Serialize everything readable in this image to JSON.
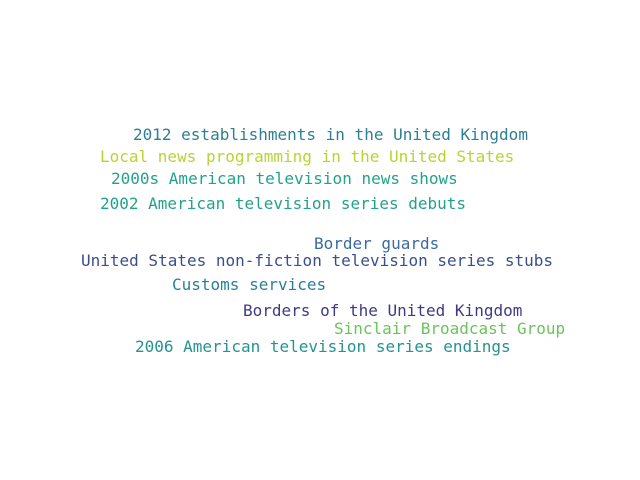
{
  "words": [
    {
      "text": "2012 establishments in the United Kingdom",
      "color": "#2d7f93"
    },
    {
      "text": "Local news programming in the United States",
      "color": "#b8d434"
    },
    {
      "text": "2000s American television news shows",
      "color": "#23a28a"
    },
    {
      "text": "2002 American television series debuts",
      "color": "#23a28a"
    },
    {
      "text": "Border guards",
      "color": "#3a6aa0"
    },
    {
      "text": "United States non-fiction television series stubs",
      "color": "#3b4e8c"
    },
    {
      "text": "Customs services",
      "color": "#2a7f9a"
    },
    {
      "text": "Borders of the United Kingdom",
      "color": "#3e3a86"
    },
    {
      "text": "Sinclair Broadcast Group",
      "color": "#6cc35c"
    },
    {
      "text": "2006 American television series endings",
      "color": "#239491"
    }
  ]
}
